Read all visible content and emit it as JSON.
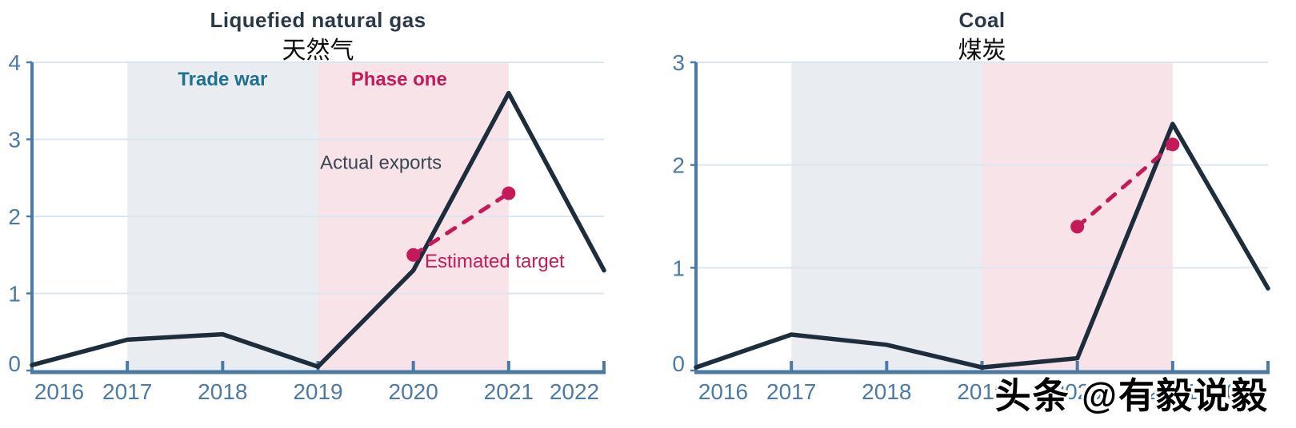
{
  "page": {
    "background": "#ffffff"
  },
  "watermark": {
    "text": "头条 @有毅说毅"
  },
  "colors": {
    "axis_blue": "#4a7aa5",
    "grid": "#dde5ed",
    "line_dark": "#1d2d3c",
    "crimson": "#c41a5a",
    "teal": "#20708f",
    "label_dark": "#3a4652",
    "title_dark": "#2b3947",
    "region_grey": "#e9edf2",
    "region_pink": "#f8e3e9"
  },
  "chart_data": [
    {
      "id": "lng",
      "type": "line",
      "title": "Liquefied natural gas",
      "subtitle": "天然气",
      "xlim": [
        2016,
        2022
      ],
      "ylim": [
        0,
        4
      ],
      "yticks": [
        0,
        1,
        2,
        3,
        4
      ],
      "xticks": [
        2016,
        2017,
        2018,
        2019,
        2020,
        2021,
        2022
      ],
      "xtick_labels": [
        "2016",
        "2017",
        "2018",
        "2019",
        "2020",
        "2021",
        "2022"
      ],
      "grid": true,
      "legend_position": "annotated-inline",
      "regions": [
        {
          "name": "trade-war-region",
          "x0": 2017,
          "x1": 2019,
          "fill_key": "region_grey"
        },
        {
          "name": "phase-one-region",
          "x0": 2019,
          "x1": 2021,
          "fill_key": "region_pink"
        }
      ],
      "series": [
        {
          "name": "Actual exports",
          "style": "solid",
          "color_key": "line_dark",
          "x": [
            2016,
            2017,
            2018,
            2019,
            2020,
            2021,
            2022
          ],
          "values": [
            0.07,
            0.4,
            0.47,
            0.05,
            1.3,
            3.6,
            1.3
          ]
        },
        {
          "name": "Estimated target",
          "style": "dashed",
          "endpoint_dots": true,
          "color_key": "crimson",
          "x": [
            2020,
            2021
          ],
          "values": [
            1.5,
            2.3
          ]
        }
      ],
      "annotations": [
        {
          "name": "trade-war-label",
          "text": "Trade war",
          "x": 2018,
          "y": 3.78,
          "anchor": "middle",
          "color_key": "teal",
          "bold": true
        },
        {
          "name": "phase-one-label",
          "text": "Phase one",
          "x": 2019.85,
          "y": 3.78,
          "anchor": "middle",
          "color_key": "crimson",
          "bold": true
        },
        {
          "name": "actual-exports-label",
          "text": "Actual exports",
          "x": 2019.66,
          "y": 2.7,
          "anchor": "middle",
          "color_key": "label_dark",
          "bold": false
        },
        {
          "name": "estimated-target-label",
          "text": "Estimated target",
          "x": 2020.12,
          "y": 1.42,
          "anchor": "start",
          "color_key": "crimson",
          "bold": false
        }
      ]
    },
    {
      "id": "coal",
      "type": "line",
      "title": "Coal",
      "subtitle": "煤炭",
      "xlim": [
        2016,
        2022
      ],
      "ylim": [
        0,
        3
      ],
      "yticks": [
        0,
        1,
        2,
        3
      ],
      "xticks": [
        2016,
        2017,
        2018,
        2019,
        2020,
        2021,
        2022
      ],
      "xtick_labels": [
        "2016",
        "2017",
        "2018",
        "2019",
        "2020",
        "2021",
        "2022"
      ],
      "grid": true,
      "legend_position": "none",
      "regions": [
        {
          "name": "trade-war-region",
          "x0": 2017,
          "x1": 2019,
          "fill_key": "region_grey"
        },
        {
          "name": "phase-one-region",
          "x0": 2019,
          "x1": 2021,
          "fill_key": "region_pink"
        }
      ],
      "series": [
        {
          "name": "Actual exports",
          "style": "solid",
          "color_key": "line_dark",
          "x": [
            2016,
            2017,
            2018,
            2019,
            2020,
            2021,
            2022
          ],
          "values": [
            0.03,
            0.35,
            0.25,
            0.03,
            0.12,
            2.4,
            0.8
          ]
        },
        {
          "name": "Estimated target",
          "style": "dashed",
          "endpoint_dots": true,
          "color_key": "crimson",
          "x": [
            2020,
            2021
          ],
          "values": [
            1.4,
            2.2
          ]
        }
      ],
      "annotations": []
    }
  ]
}
